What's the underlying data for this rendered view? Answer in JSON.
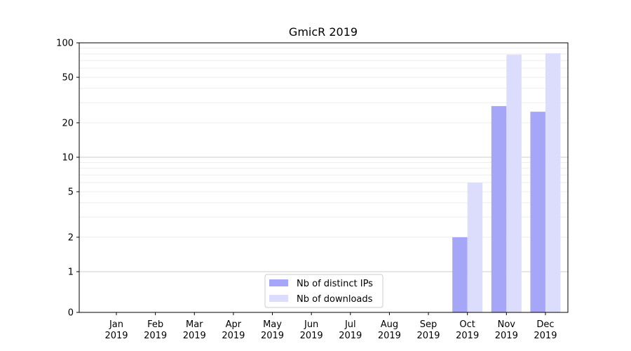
{
  "chart_data": {
    "type": "bar",
    "title": "GmicR 2019",
    "xlabel": "",
    "ylabel": "",
    "y_scale": "symlog",
    "ylim": [
      0,
      100
    ],
    "grid": "horizontal",
    "legend_placement": "lower-center",
    "categories": [
      "Jan\n2019",
      "Feb\n2019",
      "Mar\n2019",
      "Apr\n2019",
      "May\n2019",
      "Jun\n2019",
      "Jul\n2019",
      "Aug\n2019",
      "Sep\n2019",
      "Oct\n2019",
      "Nov\n2019",
      "Dec\n2019"
    ],
    "category_month": [
      "Jan",
      "Feb",
      "Mar",
      "Apr",
      "May",
      "Jun",
      "Jul",
      "Aug",
      "Sep",
      "Oct",
      "Nov",
      "Dec"
    ],
    "category_year": [
      "2019",
      "2019",
      "2019",
      "2019",
      "2019",
      "2019",
      "2019",
      "2019",
      "2019",
      "2019",
      "2019",
      "2019"
    ],
    "y_ticks": [
      0,
      1,
      2,
      5,
      10,
      20,
      50,
      100
    ],
    "y_tick_labels": [
      "0",
      "1",
      "2",
      "5",
      "10",
      "20",
      "50",
      "100"
    ],
    "series": [
      {
        "name": "Nb of distinct IPs",
        "color": "#a6a6f8",
        "values": [
          0,
          0,
          0,
          0,
          0,
          0,
          0,
          0,
          0,
          2,
          28,
          25
        ]
      },
      {
        "name": "Nb of downloads",
        "color": "#dcdcfc",
        "values": [
          0,
          0,
          0,
          0,
          0,
          0,
          0,
          0,
          0,
          6,
          79,
          81
        ]
      }
    ]
  }
}
